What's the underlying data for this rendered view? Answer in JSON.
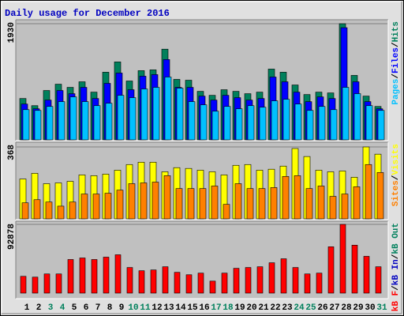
{
  "chart_data": [
    {
      "type": "bar",
      "title": "Daily usage for December 2016",
      "ylim": [
        0,
        1930
      ],
      "yticks": [
        1930
      ],
      "legend_separator": "/",
      "series": [
        {
          "name": "Hits",
          "color": "#00805c",
          "values": [
            687,
            568,
            820,
            925,
            872,
            965,
            793,
            1124,
            1295,
            978,
            1150,
            1163,
            1507,
            1005,
            991,
            806,
            740,
            833,
            806,
            767,
            793,
            1176,
            1124,
            912,
            753,
            793,
            780,
            1930,
            1071,
            727,
            555
          ]
        },
        {
          "name": "Files",
          "color": "#0000ff",
          "values": [
            595,
            516,
            661,
            820,
            767,
            872,
            687,
            939,
            1110,
            833,
            1058,
            1084,
            1335,
            872,
            872,
            727,
            661,
            740,
            701,
            661,
            687,
            1044,
            965,
            793,
            635,
            714,
            687,
            1864,
            965,
            635,
            516
          ]
        },
        {
          "name": "Pages",
          "color": "#00c0ff",
          "values": [
            502,
            489,
            555,
            635,
            714,
            635,
            568,
            608,
            740,
            701,
            846,
            872,
            1044,
            859,
            635,
            582,
            476,
            555,
            516,
            568,
            542,
            648,
            674,
            595,
            489,
            555,
            502,
            872,
            767,
            568,
            489
          ]
        }
      ]
    },
    {
      "type": "bar",
      "ylim": [
        0,
        368
      ],
      "yticks": [
        368
      ],
      "legend_separator": "/",
      "series": [
        {
          "name": "Visits",
          "color": "#ffff00",
          "values": [
            204,
            233,
            180,
            184,
            192,
            225,
            221,
            229,
            249,
            278,
            290,
            290,
            241,
            262,
            258,
            249,
            241,
            225,
            274,
            278,
            249,
            254,
            270,
            360,
            319,
            249,
            241,
            245,
            213,
            368,
            331
          ]
        },
        {
          "name": "Sites",
          "color": "#ff8000",
          "values": [
            82,
            98,
            86,
            65,
            86,
            127,
            127,
            131,
            147,
            180,
            184,
            188,
            221,
            155,
            155,
            155,
            168,
            74,
            180,
            155,
            155,
            160,
            217,
            221,
            155,
            168,
            115,
            127,
            164,
            278,
            237
          ]
        }
      ]
    },
    {
      "type": "bar",
      "ylim": [
        0,
        92878
      ],
      "yticks": [
        92878
      ],
      "legend_separator": "/",
      "categories": [
        "1",
        "2",
        "3",
        "4",
        "5",
        "6",
        "7",
        "8",
        "9",
        "10",
        "11",
        "12",
        "13",
        "14",
        "15",
        "16",
        "17",
        "18",
        "19",
        "20",
        "21",
        "22",
        "23",
        "24",
        "25",
        "26",
        "27",
        "28",
        "29",
        "30",
        "31"
      ],
      "category_colors": [
        "#000000",
        "#000000",
        "#00805c",
        "#00805c",
        "#000000",
        "#000000",
        "#000000",
        "#000000",
        "#000000",
        "#00805c",
        "#00805c",
        "#000000",
        "#000000",
        "#000000",
        "#000000",
        "#000000",
        "#00805c",
        "#00805c",
        "#000000",
        "#000000",
        "#000000",
        "#000000",
        "#000000",
        "#00805c",
        "#00805c",
        "#000000",
        "#000000",
        "#000000",
        "#000000",
        "#000000",
        "#00805c"
      ],
      "series": [
        {
          "name": "kB F",
          "color": "#ff0000",
          "values": [
            22680,
            21600,
            25900,
            25900,
            45400,
            47500,
            45400,
            48600,
            51800,
            34600,
            30200,
            31300,
            35600,
            28100,
            24800,
            27000,
            16200,
            27000,
            33500,
            34600,
            35600,
            41000,
            46400,
            34600,
            25900,
            27000,
            62600,
            92878,
            64800,
            49700,
            35600
          ]
        }
      ],
      "legend_extra": [
        {
          "name": "kB In",
          "color": "#0000c0"
        },
        {
          "name": "kB Out",
          "color": "#00805c"
        }
      ]
    }
  ]
}
